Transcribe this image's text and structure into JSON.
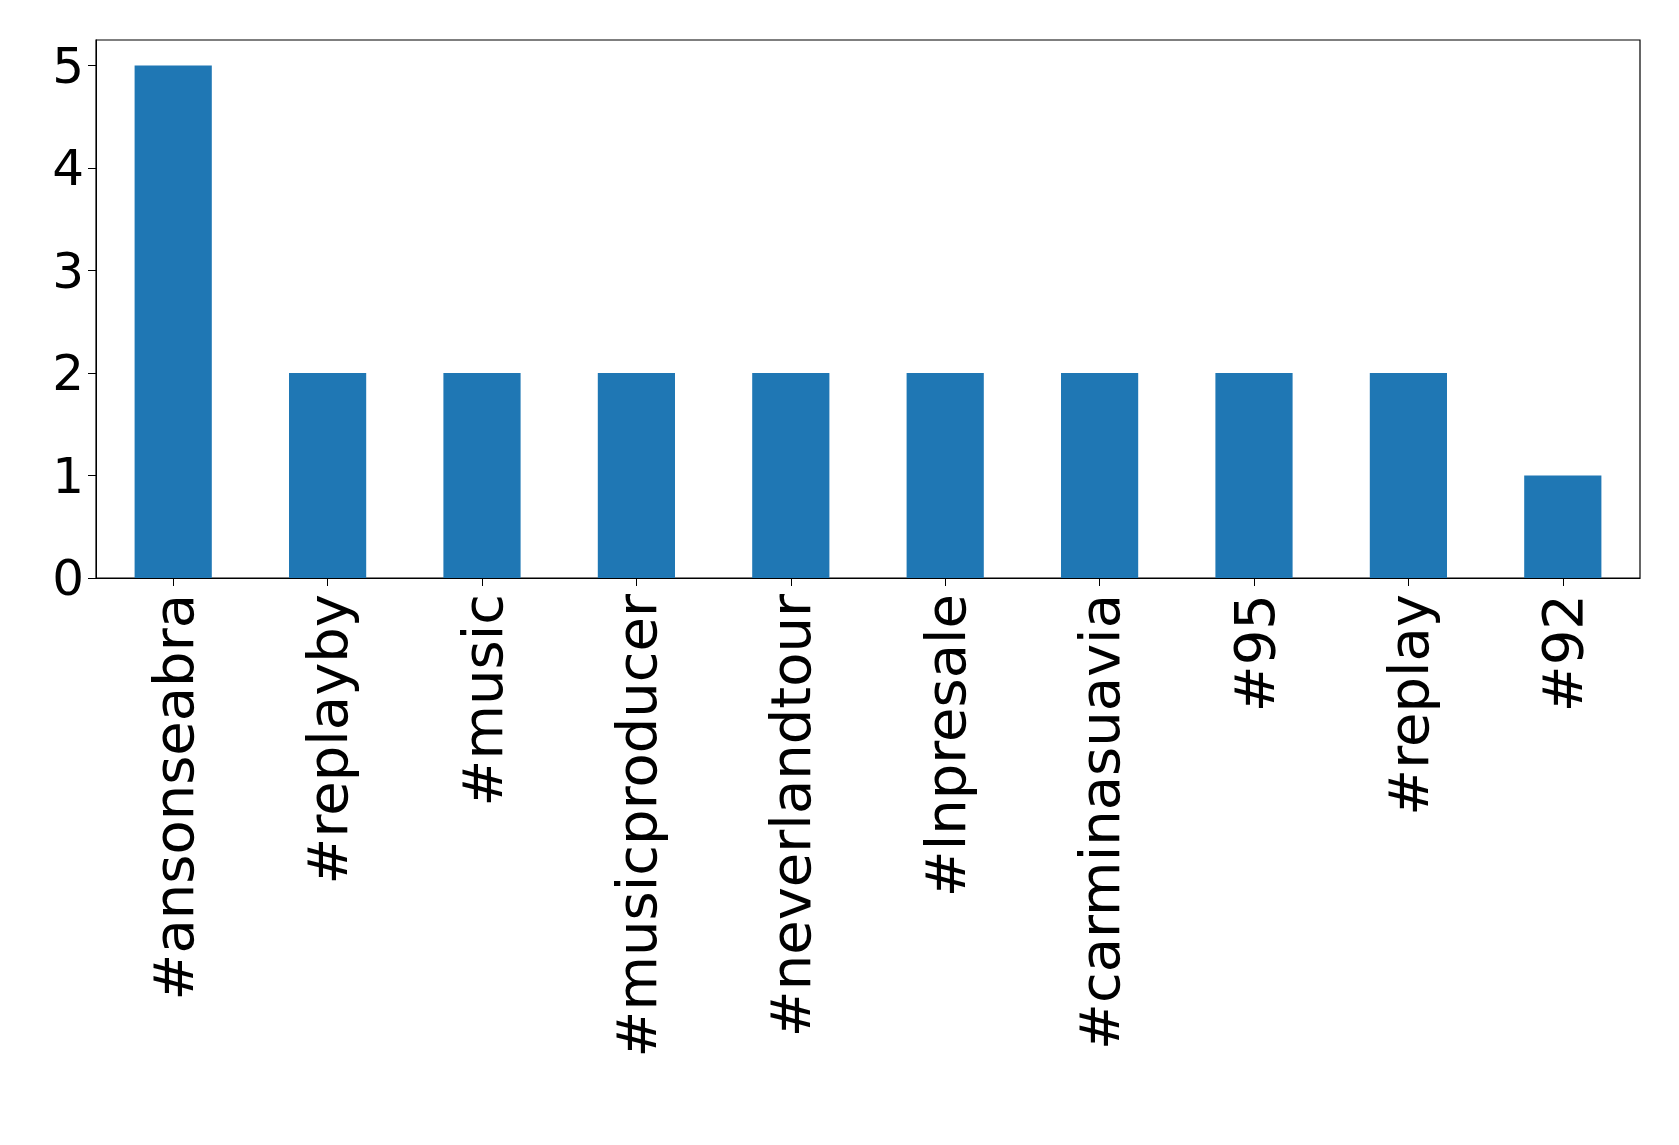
{
  "chart_data": {
    "type": "bar",
    "categories": [
      "#ansonseabra",
      "#replayby",
      "#music",
      "#musicproducer",
      "#neverlandtour",
      "#lnpresale",
      "#carminasuavia",
      "#95",
      "#replay",
      "#92"
    ],
    "values": [
      5,
      2,
      2,
      2,
      2,
      2,
      2,
      2,
      2,
      1
    ],
    "color": "#1f77b4",
    "ylim": [
      0,
      5.25
    ],
    "yticks": [
      0,
      1,
      2,
      3,
      4,
      5
    ],
    "grid": false
  }
}
